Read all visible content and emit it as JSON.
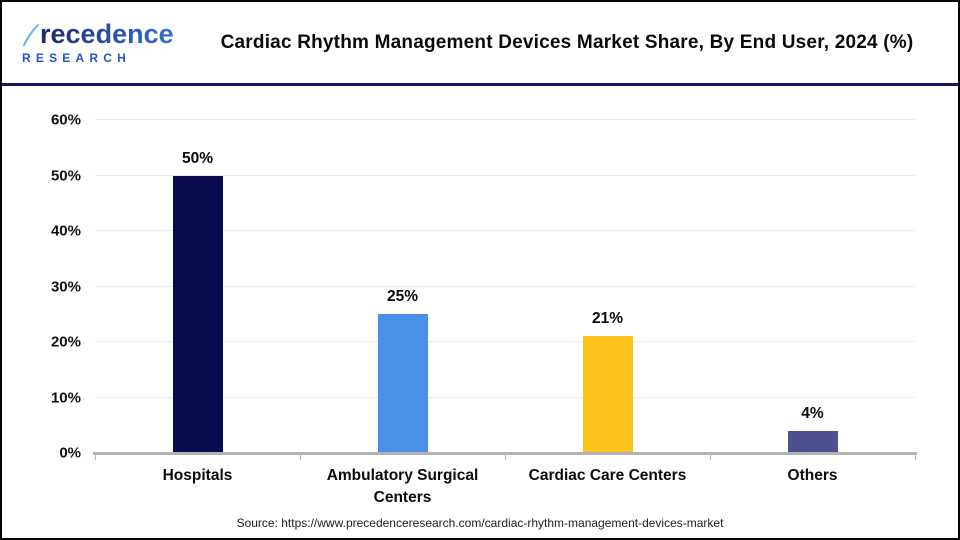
{
  "header": {
    "logo": {
      "wordmark_initial": "P",
      "wordmark_rest": "recedence",
      "subtitle": "RESEARCH"
    },
    "title": "Cardiac Rhythm Management Devices Market Share, By End User, 2024 (%)"
  },
  "chart_data": {
    "type": "bar",
    "title": "Cardiac Rhythm Management Devices Market Share, By End User, 2024 (%)",
    "categories": [
      "Hospitals",
      "Ambulatory Surgical Centers",
      "Cardiac Care Centers",
      "Others"
    ],
    "values": [
      50,
      25,
      21,
      4
    ],
    "value_labels": [
      "50%",
      "25%",
      "21%",
      "4%"
    ],
    "bar_colors": [
      "#080C4F",
      "#4A90E8",
      "#FBC31B",
      "#4D5190"
    ],
    "ylim": [
      0,
      60
    ],
    "ytick_values": [
      0,
      10,
      20,
      30,
      40,
      50,
      60
    ],
    "ytick_labels": [
      "0%",
      "10%",
      "20%",
      "30%",
      "40%",
      "50%",
      "60%"
    ],
    "grid": true,
    "legend": false,
    "xlabel": "",
    "ylabel": ""
  },
  "footer": {
    "source": "Source: https://www.precedenceresearch.com/cardiac-rhythm-management-devices-market"
  },
  "colors": {
    "header_divider": "#15155A",
    "gridline": "#ececec",
    "axis_line": "#b3b3b3",
    "logo_leaf_vein": "#62B8E8"
  }
}
